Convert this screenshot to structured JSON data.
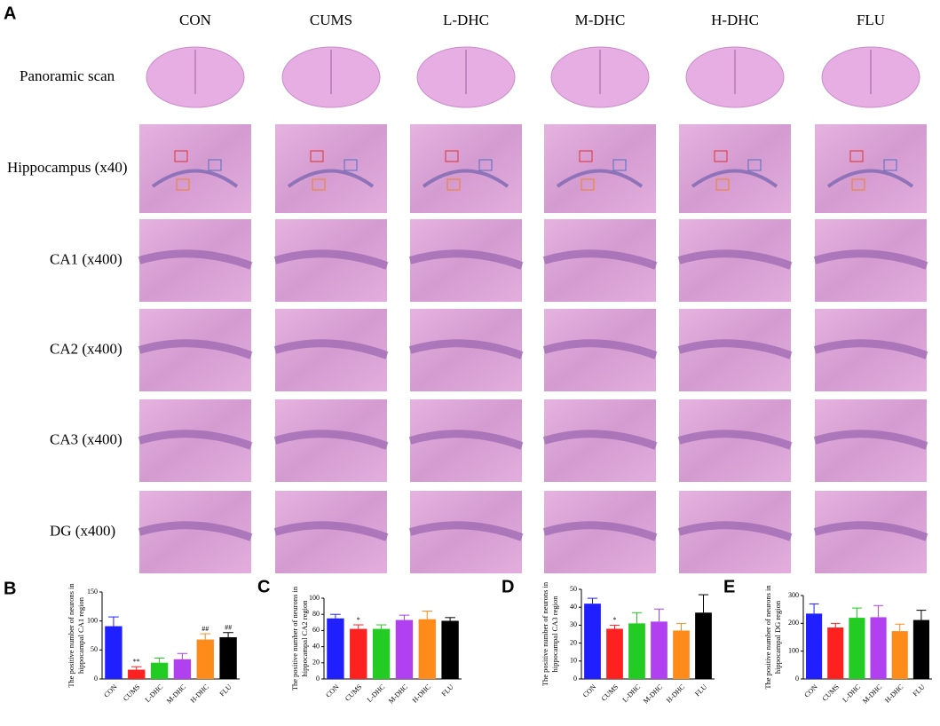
{
  "panel_a": {
    "label": "A",
    "columns": [
      "CON",
      "CUMS",
      "L-DHC",
      "M-DHC",
      "H-DHC",
      "FLU"
    ],
    "rows": [
      "Panoramic scan",
      "Hippocampus (x40)",
      "CA1 (x400)",
      "CA2 (x400)",
      "CA3 (x400)",
      "DG (x400)"
    ]
  },
  "chart_data": [
    {
      "type": "bar",
      "panel": "B",
      "ylabel": [
        "The positive number of neurons in",
        "hippocampal CA1 region"
      ],
      "categories": [
        "CON",
        "CUMS",
        "L-DHC",
        "M-DHC",
        "H-DHC",
        "FLU"
      ],
      "values": [
        91,
        16,
        28,
        34,
        68,
        72
      ],
      "errors": [
        16,
        5,
        8,
        10,
        10,
        8
      ],
      "value_annotations": [
        null,
        "**",
        null,
        null,
        "##",
        "##"
      ],
      "colors": [
        "#1f1fff",
        "#ff2020",
        "#22cc22",
        "#b040f0",
        "#ff8c1a",
        "#000000"
      ],
      "ylim": [
        0,
        150
      ],
      "yticks": [
        0,
        50,
        100,
        150
      ]
    },
    {
      "type": "bar",
      "panel": "C",
      "ylabel": [
        "The positive number of neurons in",
        "hippocampal CA2 region"
      ],
      "categories": [
        "CON",
        "CUMS",
        "L-DHC",
        "M-DHC",
        "H-DHC",
        "FLU"
      ],
      "values": [
        75,
        62,
        62,
        73,
        74,
        72
      ],
      "errors": [
        5,
        5,
        5,
        6,
        10,
        4
      ],
      "value_annotations": [
        null,
        "*",
        null,
        null,
        null,
        null
      ],
      "colors": [
        "#1f1fff",
        "#ff2020",
        "#22cc22",
        "#b040f0",
        "#ff8c1a",
        "#000000"
      ],
      "ylim": [
        0,
        100
      ],
      "yticks": [
        0,
        20,
        40,
        60,
        80,
        100
      ]
    },
    {
      "type": "bar",
      "panel": "D",
      "ylabel": [
        "The positive number of neurons in",
        "hippocampal CA3 region"
      ],
      "categories": [
        "CON",
        "CUMS",
        "L-DHC",
        "M-DHC",
        "H-DHC",
        "FLU"
      ],
      "values": [
        42,
        28,
        31,
        32,
        27,
        37
      ],
      "errors": [
        3,
        2,
        6,
        7,
        4,
        10
      ],
      "value_annotations": [
        null,
        "*",
        null,
        null,
        null,
        null
      ],
      "colors": [
        "#1f1fff",
        "#ff2020",
        "#22cc22",
        "#b040f0",
        "#ff8c1a",
        "#000000"
      ],
      "ylim": [
        0,
        50
      ],
      "yticks": [
        0,
        10,
        20,
        30,
        40,
        50
      ]
    },
    {
      "type": "bar",
      "panel": "E",
      "ylabel": [
        "The positive number of neurons in",
        "hippocampal DG region"
      ],
      "categories": [
        "CON",
        "CUMS",
        "L-DHC",
        "M-DHC",
        "H-DHC",
        "FLU"
      ],
      "values": [
        235,
        185,
        220,
        222,
        172,
        212
      ],
      "errors": [
        35,
        15,
        35,
        42,
        25,
        35
      ],
      "value_annotations": [
        null,
        null,
        null,
        null,
        null,
        null
      ],
      "colors": [
        "#1f1fff",
        "#ff2020",
        "#22cc22",
        "#b040f0",
        "#ff8c1a",
        "#000000"
      ],
      "ylim": [
        0,
        300
      ],
      "yticks": [
        0,
        100,
        200,
        300
      ]
    }
  ]
}
